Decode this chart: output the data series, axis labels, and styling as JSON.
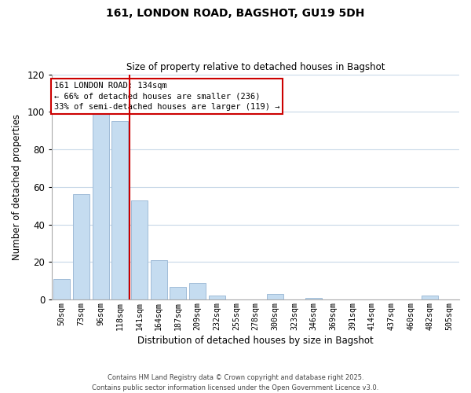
{
  "title": "161, LONDON ROAD, BAGSHOT, GU19 5DH",
  "subtitle": "Size of property relative to detached houses in Bagshot",
  "xlabel": "Distribution of detached houses by size in Bagshot",
  "ylabel": "Number of detached properties",
  "bar_labels": [
    "50sqm",
    "73sqm",
    "96sqm",
    "118sqm",
    "141sqm",
    "164sqm",
    "187sqm",
    "209sqm",
    "232sqm",
    "255sqm",
    "278sqm",
    "300sqm",
    "323sqm",
    "346sqm",
    "369sqm",
    "391sqm",
    "414sqm",
    "437sqm",
    "460sqm",
    "482sqm",
    "505sqm"
  ],
  "bar_values": [
    11,
    56,
    101,
    95,
    53,
    21,
    7,
    9,
    2,
    0,
    0,
    3,
    0,
    1,
    0,
    0,
    0,
    0,
    0,
    2,
    0
  ],
  "bar_color": "#c5dcf0",
  "bar_edge_color": "#a0bcd8",
  "vline_color": "#cc0000",
  "ylim": [
    0,
    120
  ],
  "yticks": [
    0,
    20,
    40,
    60,
    80,
    100,
    120
  ],
  "annotation_text": "161 LONDON ROAD: 134sqm\n← 66% of detached houses are smaller (236)\n33% of semi-detached houses are larger (119) →",
  "annotation_box_edgecolor": "#cc0000",
  "annotation_box_facecolor": "#ffffff",
  "footer_line1": "Contains HM Land Registry data © Crown copyright and database right 2025.",
  "footer_line2": "Contains public sector information licensed under the Open Government Licence v3.0.",
  "background_color": "#ffffff",
  "grid_color": "#c8d8e8"
}
